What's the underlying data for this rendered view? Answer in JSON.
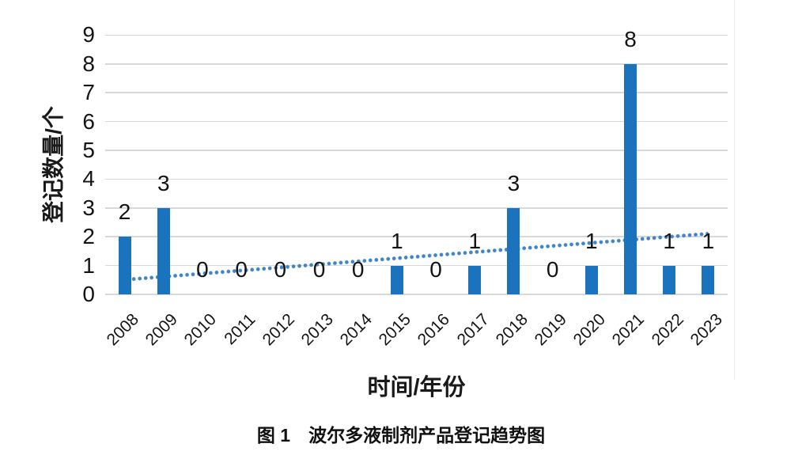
{
  "chart_data": {
    "type": "bar",
    "categories": [
      "2008",
      "2009",
      "2010",
      "2011",
      "2012",
      "2013",
      "2014",
      "2015",
      "2016",
      "2017",
      "2018",
      "2019",
      "2020",
      "2021",
      "2022",
      "2023"
    ],
    "values": [
      2,
      3,
      0,
      0,
      0,
      0,
      0,
      1,
      0,
      1,
      3,
      0,
      1,
      8,
      1,
      1
    ],
    "data_labels_shown": true,
    "xlabel": "时间/年份",
    "ylabel": "登记数量/个",
    "ylim": [
      0,
      9
    ],
    "yticks": [
      0,
      1,
      2,
      3,
      4,
      5,
      6,
      7,
      8,
      9
    ],
    "grid": true,
    "legend_position": "none",
    "trendline": {
      "type": "linear",
      "style": "dotted",
      "y_start": 0.51,
      "y_end": 2.11
    },
    "colors": {
      "bar": "#1b73be",
      "trend": "#3e85ca",
      "gridline": "#d8d8d8",
      "text": "#141414"
    }
  },
  "caption": "图 1　波尔多液制剂产品登记趋势图"
}
